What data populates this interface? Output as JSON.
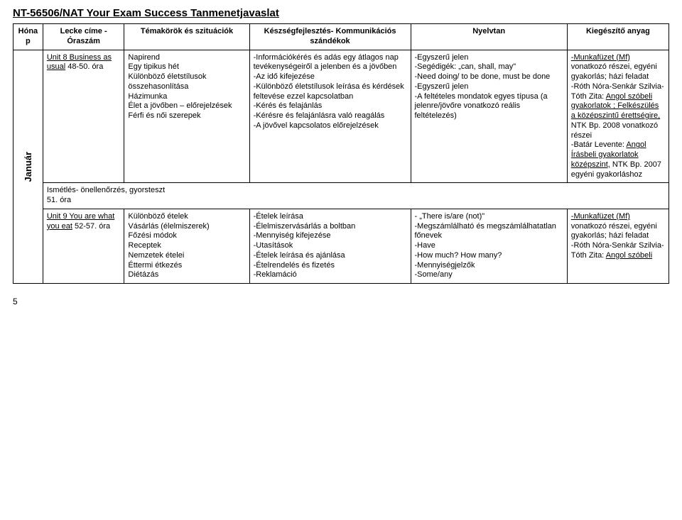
{
  "doc_title": "NT-56506/NAT Your Exam Success Tanmenetjavaslat",
  "headers": {
    "month": "Hónap",
    "lesson": "Lecke címe - Óraszám",
    "topics": "Témakörök és szituációk",
    "skills": "Készségfejlesztés- Kommunikációs szándékok",
    "grammar": "Nyelvtan",
    "extra": "Kiegészítő anyag"
  },
  "month_label": "Január",
  "rows": [
    {
      "lesson_u": "Unit 8 Business as usual",
      "lesson_rest": " 48-50. óra",
      "topics": "Napirend\nEgy tipikus hét\nKülönböző életstílusok összehasonlítása\nHázimunka\nÉlet a jövőben – előrejelzések\nFérfi és női szerepek",
      "skills": "-Információkérés és adás egy átlagos nap tevékenységeiről a jelenben és a jövőben\n-Az idő kifejezése\n-Különböző életstílusok leírása és kérdések feltevése ezzel kapcsolatban\n-Kérés és felajánlás\n-Kérésre és felajánlásra való reagálás\n-A jövővel kapcsolatos előrejelzések",
      "grammar": "-Egyszerű jelen\n-Segédigék: „can, shall, may\"\n-Need doing/ to be done, must be done\n-Egyszerű jelen\n-A feltételes mondatok egyes típusa (a jelenre/jövőre vonatkozó reális feltételezés)",
      "extra_parts": [
        {
          "u": true,
          "t": "-Munkafüzet (Mf)"
        },
        {
          "u": false,
          "t": " vonatkozó részei, egyéni gyakorlás; házi feladat\n-Róth Nóra-Senkár Szilvia-Tóth Zita: "
        },
        {
          "u": true,
          "t": "Angol szóbeli gyakorlatok ; Felkészülés a középszintű érettségire,"
        },
        {
          "u": false,
          "t": " NTK Bp. 2008 vonatkozó részei\n-Batár Levente: "
        },
        {
          "u": true,
          "t": "Angol Írásbeli gyakorlatok középszint,"
        },
        {
          "u": false,
          "t": " NTK Bp. 2007 egyéni gyakorláshoz"
        }
      ]
    },
    {
      "full_row": "Ismétlés- önellenőrzés, gyorsteszt\n51. óra"
    },
    {
      "lesson_u": "Unit 9 You are what you eat",
      "lesson_rest": " 52-57. óra",
      "topics": "Különböző ételek\nVásárlás (élelmiszerek)\nFőzési módok\nReceptek\nNemzetek ételei\nÉttermi étkezés\nDiétázás",
      "skills": "-Ételek leírása\n-Élelmiszervásárlás a boltban\n-Mennyiség kifejezése\n-Utasítások\n-Ételek leírása és ajánlása\n-Ételrendelés és fizetés\n-Reklamáció",
      "grammar": "- „There is/are (not)\"\n-Megszámlálható és megszámlálhatatlan főnevek\n-Have\n-How much? How many?\n-Mennyiségjelzők\n-Some/any",
      "extra_parts": [
        {
          "u": true,
          "t": "-Munkafüzet (Mf)"
        },
        {
          "u": false,
          "t": " vonatkozó részei, egyéni gyakorlás; házi feladat\n-Róth Nóra-Senkár Szilvia-Tóth Zita: "
        },
        {
          "u": true,
          "t": "Angol szóbeli"
        }
      ]
    }
  ],
  "page_number": "5"
}
